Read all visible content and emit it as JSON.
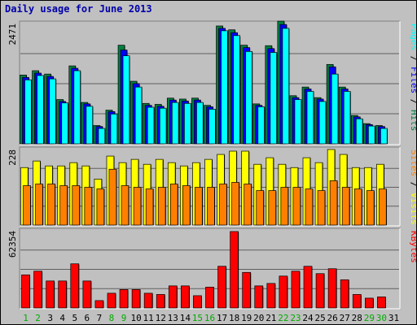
{
  "title": "Daily usage for June 2013",
  "colors": {
    "background": "#c0c0c0",
    "frame": "#000000",
    "title": "#0000aa",
    "hits": "#008040",
    "files": "#0000ff",
    "pages": "#00ffff",
    "visits": "#ffff00",
    "sites": "#ff8000",
    "kbytes": "#ff0000",
    "separator": "#000000",
    "weekend_day": "#00aa00",
    "weekday": "#000000",
    "gridline": "#606060"
  },
  "chart_data": {
    "type": "bar",
    "categories": [
      "1",
      "2",
      "3",
      "4",
      "5",
      "6",
      "7",
      "8",
      "9",
      "10",
      "11",
      "12",
      "13",
      "14",
      "15",
      "16",
      "17",
      "18",
      "19",
      "20",
      "21",
      "22",
      "23",
      "24",
      "25",
      "26",
      "27",
      "28",
      "29",
      "30",
      "31"
    ],
    "weekend_days": [
      "1",
      "2",
      "8",
      "9",
      "15",
      "16",
      "22",
      "23",
      "29",
      "30"
    ],
    "panels": [
      {
        "name": "hits-files-pages",
        "max_label": "2471",
        "ymax": 2500,
        "right_label_parts": [
          {
            "text": "Pages",
            "color": "#00ffff"
          },
          {
            "text": " / ",
            "color": "#000000"
          },
          {
            "text": "Files",
            "color": "#0000ff"
          },
          {
            "text": " / ",
            "color": "#000000"
          },
          {
            "text": "Hits",
            "color": "#008040"
          }
        ],
        "series": [
          {
            "name": "Hits",
            "color": "#008040",
            "values": [
              1430,
              1520,
              1450,
              920,
              1620,
              860,
              380,
              700,
              2050,
              1300,
              840,
              820,
              950,
              930,
              950,
              800,
              2450,
              2370,
              2050,
              830,
              2040,
              2550,
              1000,
              1180,
              960,
              1650,
              1180,
              590,
              420,
              380,
              null
            ]
          },
          {
            "name": "Files",
            "color": "#0000ff",
            "values": [
              1380,
              1470,
              1400,
              880,
              1570,
              830,
              360,
              670,
              1950,
              1250,
              800,
              780,
              910,
              890,
              910,
              770,
              2400,
              2310,
              2000,
              800,
              1980,
              2480,
              960,
              1140,
              930,
              1600,
              1140,
              560,
              400,
              360,
              null
            ]
          },
          {
            "name": "Pages",
            "color": "#00ffff",
            "values": [
              1330,
              1420,
              1350,
              850,
              1520,
              780,
              320,
              620,
              1830,
              1180,
              760,
              740,
              860,
              840,
              860,
              720,
              2350,
              2250,
              1920,
              770,
              1900,
              2400,
              920,
              1090,
              880,
              1450,
              1090,
              520,
              370,
              320,
              null
            ]
          }
        ]
      },
      {
        "name": "visits-sites",
        "max_label": "228",
        "ymax": 230,
        "right_label_parts": [
          {
            "text": "Sites",
            "color": "#ff8000"
          },
          {
            "text": " / ",
            "color": "#000000"
          },
          {
            "text": "Visits",
            "color": "#ffff00"
          }
        ],
        "series": [
          {
            "name": "Visits",
            "color": "#ffff00",
            "values": [
              175,
              195,
              180,
              180,
              190,
              180,
              140,
              210,
              190,
              200,
              185,
              200,
              190,
              180,
              190,
              200,
              215,
              225,
              225,
              185,
              205,
              185,
              175,
              205,
              190,
              230,
              215,
              175,
              175,
              185,
              null
            ]
          },
          {
            "name": "Sites",
            "color": "#ff8000",
            "values": [
              120,
              125,
              125,
              120,
              120,
              115,
              110,
              170,
              120,
              115,
              110,
              115,
              125,
              120,
              115,
              115,
              125,
              130,
              125,
              105,
              105,
              115,
              115,
              110,
              105,
              135,
              115,
              110,
              105,
              110,
              null
            ]
          }
        ]
      },
      {
        "name": "kbytes",
        "max_label": "62354",
        "ymax": 63000,
        "right_label_parts": [
          {
            "text": "KBytes",
            "color": "#ff0000"
          }
        ],
        "series": [
          {
            "name": "KBytes",
            "color": "#ff0000",
            "values": [
              27000,
              30000,
              22000,
              22000,
              36000,
              22000,
              6000,
              12000,
              15000,
              15000,
              12000,
              11000,
              18000,
              18000,
              10000,
              17000,
              34000,
              62354,
              29000,
              18000,
              20000,
              26000,
              30000,
              34000,
              28000,
              32000,
              23000,
              11000,
              8000,
              9000,
              null
            ]
          }
        ]
      }
    ]
  }
}
